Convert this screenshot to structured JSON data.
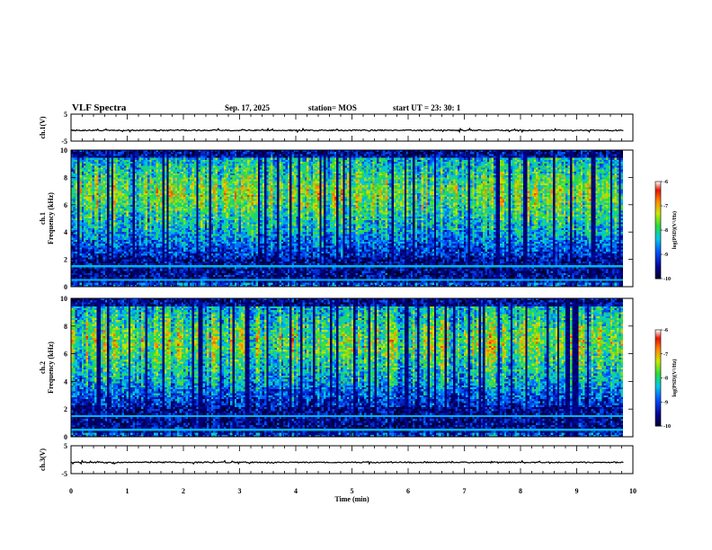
{
  "header": {
    "title": "VLF Spectra",
    "date": "Sep. 17, 2025",
    "station": "station= MOS",
    "start": "start  UT =   23: 30: 1"
  },
  "chart_data": [
    {
      "type": "line",
      "name": "ch1-waveform",
      "ylabel": "ch.1(V)",
      "ylim": [
        -5,
        5
      ],
      "yticks": [
        "5",
        "-5"
      ],
      "xlim": [
        0,
        10
      ],
      "values_description_level": 0
    },
    {
      "type": "heatmap",
      "name": "ch1-spectrogram",
      "ylabel": "ch.1\nFrequency (kHz)",
      "ylim": [
        0,
        10
      ],
      "yticks": [
        "0",
        "2",
        "4",
        "6",
        "8",
        "10"
      ],
      "xlim": [
        0,
        9.83
      ],
      "colorbar": {
        "label": "log(PSD)(V²/Hz)",
        "range": [
          -10,
          -6
        ],
        "ticks": [
          "-6",
          "-7",
          "-8",
          "-9",
          "-10"
        ]
      }
    },
    {
      "type": "heatmap",
      "name": "ch2-spectrogram",
      "ylabel": "ch.2\nFrequency (kHz)",
      "ylim": [
        0,
        10
      ],
      "yticks": [
        "0",
        "2",
        "4",
        "6",
        "8",
        "10"
      ],
      "xlim": [
        0,
        9.83
      ],
      "colorbar": {
        "label": "log(PSD)(V²/Hz)",
        "range": [
          -10,
          -6
        ],
        "ticks": [
          "-6",
          "-7",
          "-8",
          "-9",
          "-10"
        ]
      }
    },
    {
      "type": "line",
      "name": "ch3-waveform",
      "ylabel": "ch.3(V)",
      "ylim": [
        -5,
        5
      ],
      "yticks": [
        "5",
        "-5"
      ],
      "xlim": [
        0,
        10
      ]
    }
  ],
  "xaxis": {
    "label": "Time  (min)",
    "ticks": [
      "0",
      "1",
      "2",
      "3",
      "4",
      "5",
      "6",
      "7",
      "8",
      "9",
      "10"
    ]
  },
  "labels": {
    "ch1_v": "ch.1(V)",
    "ch3_v": "ch.3(V)",
    "ch1": "ch.1",
    "ch2": "ch.2",
    "freq": "Frequency (kHz)",
    "cb": "log(PSD)(V²/Hz)"
  }
}
